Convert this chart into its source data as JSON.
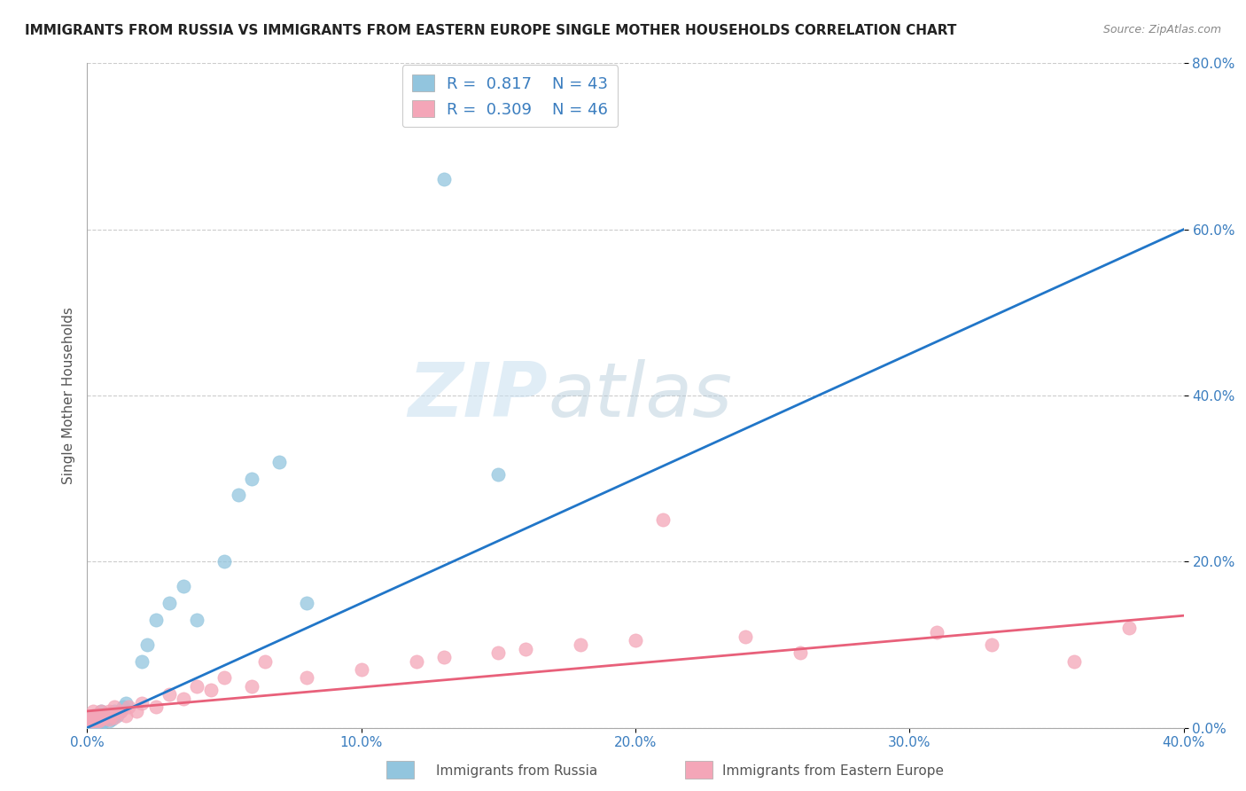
{
  "title": "IMMIGRANTS FROM RUSSIA VS IMMIGRANTS FROM EASTERN EUROPE SINGLE MOTHER HOUSEHOLDS CORRELATION CHART",
  "source": "Source: ZipAtlas.com",
  "ylabel": "Single Mother Households",
  "xlabel_russia": "Immigrants from Russia",
  "xlabel_east_europe": "Immigrants from Eastern Europe",
  "legend_russia_R": "0.817",
  "legend_russia_N": "43",
  "legend_east_europe_R": "0.309",
  "legend_east_europe_N": "46",
  "color_russia": "#92c5de",
  "color_east_europe": "#f4a6b8",
  "color_line_russia": "#2176c8",
  "color_line_east_europe": "#e8607a",
  "watermark_zip": "ZIP",
  "watermark_atlas": "atlas",
  "xlim": [
    0.0,
    0.4
  ],
  "ylim": [
    0.0,
    0.8
  ],
  "xticks": [
    0.0,
    0.1,
    0.2,
    0.3,
    0.4
  ],
  "yticks": [
    0.0,
    0.2,
    0.4,
    0.6,
    0.8
  ],
  "russia_x": [
    0.001,
    0.001,
    0.001,
    0.002,
    0.002,
    0.002,
    0.002,
    0.003,
    0.003,
    0.003,
    0.003,
    0.004,
    0.004,
    0.004,
    0.005,
    0.005,
    0.005,
    0.006,
    0.006,
    0.007,
    0.007,
    0.008,
    0.008,
    0.009,
    0.01,
    0.01,
    0.011,
    0.012,
    0.013,
    0.014,
    0.02,
    0.022,
    0.025,
    0.03,
    0.035,
    0.04,
    0.05,
    0.055,
    0.06,
    0.07,
    0.08,
    0.13,
    0.15
  ],
  "russia_y": [
    0.005,
    0.01,
    0.005,
    0.008,
    0.012,
    0.005,
    0.015,
    0.008,
    0.01,
    0.012,
    0.005,
    0.01,
    0.008,
    0.015,
    0.012,
    0.005,
    0.02,
    0.012,
    0.008,
    0.01,
    0.015,
    0.008,
    0.012,
    0.01,
    0.015,
    0.02,
    0.015,
    0.02,
    0.025,
    0.03,
    0.08,
    0.1,
    0.13,
    0.15,
    0.17,
    0.13,
    0.2,
    0.28,
    0.3,
    0.32,
    0.15,
    0.66,
    0.305
  ],
  "east_europe_x": [
    0.001,
    0.001,
    0.002,
    0.002,
    0.002,
    0.003,
    0.003,
    0.004,
    0.004,
    0.005,
    0.005,
    0.006,
    0.007,
    0.008,
    0.008,
    0.009,
    0.01,
    0.01,
    0.012,
    0.014,
    0.015,
    0.018,
    0.02,
    0.025,
    0.03,
    0.035,
    0.04,
    0.045,
    0.05,
    0.06,
    0.065,
    0.08,
    0.1,
    0.12,
    0.13,
    0.15,
    0.16,
    0.18,
    0.2,
    0.21,
    0.24,
    0.26,
    0.31,
    0.33,
    0.36,
    0.38
  ],
  "east_europe_y": [
    0.01,
    0.008,
    0.015,
    0.008,
    0.02,
    0.012,
    0.01,
    0.015,
    0.008,
    0.02,
    0.01,
    0.012,
    0.015,
    0.02,
    0.01,
    0.015,
    0.012,
    0.025,
    0.02,
    0.015,
    0.025,
    0.02,
    0.03,
    0.025,
    0.04,
    0.035,
    0.05,
    0.045,
    0.06,
    0.05,
    0.08,
    0.06,
    0.07,
    0.08,
    0.085,
    0.09,
    0.095,
    0.1,
    0.105,
    0.25,
    0.11,
    0.09,
    0.115,
    0.1,
    0.08,
    0.12
  ],
  "title_fontsize": 11,
  "source_fontsize": 9,
  "tick_fontsize": 11,
  "ylabel_fontsize": 11
}
